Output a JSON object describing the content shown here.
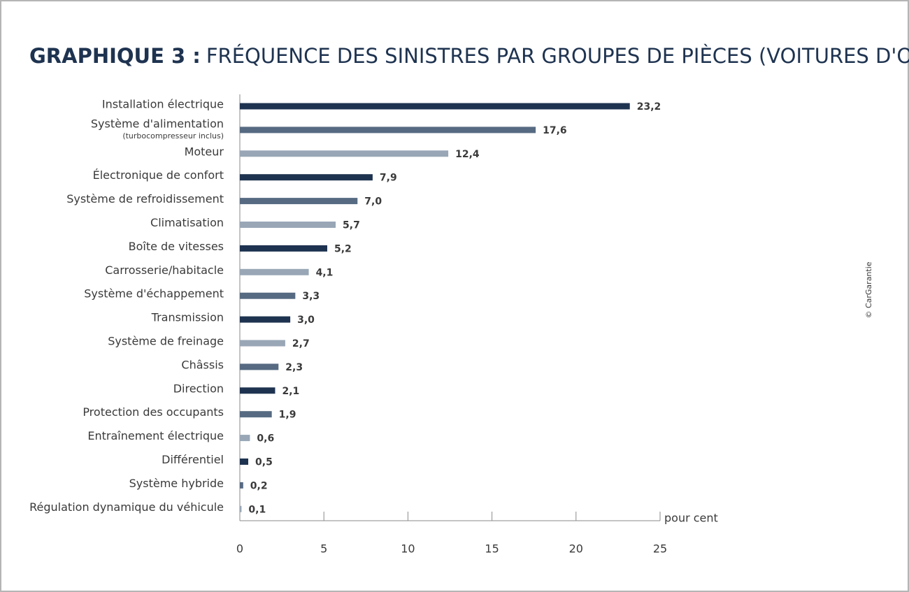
{
  "chart_data": {
    "type": "bar",
    "orientation": "horizontal",
    "title": [
      "GRAPHIQUE 3 :",
      "FRÉQUENCE DES SINISTRES PAR GROUPES DE PIÈCES (VOITURES D'OCCASION)"
    ],
    "categories": [
      "Installation électrique",
      "Système d'alimentation",
      "Moteur",
      "Électronique de confort",
      "Système de refroidissement",
      "Climatisation",
      "Boîte de vitesses",
      "Carrosserie/habitacle",
      "Système d'échappement",
      "Transmission",
      "Système de freinage",
      "Châssis",
      "Direction",
      "Protection des occupants",
      "Entraînement électrique",
      "Différentiel",
      "Système hybride",
      "Régulation dynamique du véhicule"
    ],
    "category_notes": [
      null,
      "(turbocompresseur inclus)",
      null,
      null,
      null,
      null,
      null,
      null,
      null,
      null,
      null,
      null,
      null,
      null,
      null,
      null,
      null,
      null
    ],
    "values": [
      23.2,
      17.6,
      12.4,
      7.9,
      7.0,
      5.7,
      5.2,
      4.1,
      3.3,
      3.0,
      2.7,
      2.3,
      2.1,
      1.9,
      0.6,
      0.5,
      0.2,
      0.1
    ],
    "value_labels": [
      "23,2",
      "17,6",
      "12,4",
      "7,9",
      "7,0",
      "5,7",
      "5,2",
      "4,1",
      "3,3",
      "3,0",
      "2,7",
      "2,3",
      "2,1",
      "1,9",
      "0,6",
      "0,5",
      "0,2",
      "0,1"
    ],
    "colors": [
      "#1e3350",
      "#566a82",
      "#98a6b6",
      "#1e3350",
      "#566a82",
      "#98a6b6",
      "#1e3350",
      "#98a6b6",
      "#566a82",
      "#1e3350",
      "#98a6b6",
      "#566a82",
      "#1e3350",
      "#566a82",
      "#98a6b6",
      "#1e3350",
      "#566a82",
      "#98a6b6"
    ],
    "x_label": "pour cent",
    "xlim": [
      0,
      25
    ],
    "xticks": [
      0,
      5,
      10,
      15,
      20,
      25
    ],
    "credit": "© CarGarantie"
  }
}
